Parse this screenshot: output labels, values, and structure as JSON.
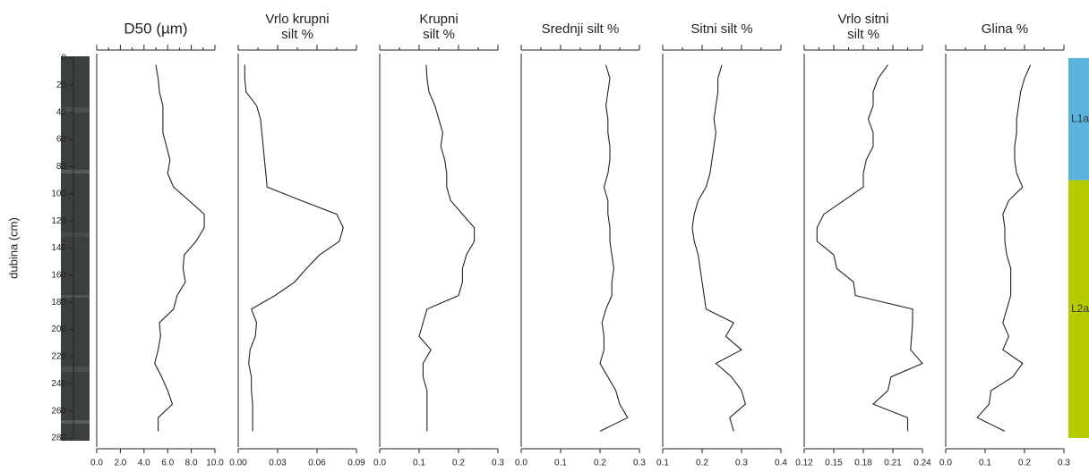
{
  "chart_data": [
    {
      "type": "line",
      "title": [
        "D50 (µm)"
      ],
      "xlim": [
        0,
        10
      ],
      "xticks": [
        {
          "value": 0,
          "label": "0.0"
        },
        {
          "value": 2,
          "label": "2.0"
        },
        {
          "value": 4,
          "label": "4.0"
        },
        {
          "value": 6,
          "label": "6.0"
        },
        {
          "value": 8,
          "label": "8.0"
        },
        {
          "value": 10,
          "label": "10.0"
        }
      ],
      "ylabel": "dubina (cm)",
      "ylim": [
        0,
        280
      ],
      "yticks": [
        0,
        20,
        40,
        60,
        80,
        100,
        120,
        140,
        160,
        180,
        200,
        220,
        240,
        260,
        280
      ],
      "y_inverted": true,
      "color": "#222222",
      "y": [
        5,
        15,
        25,
        35,
        45,
        55,
        65,
        75,
        85,
        95,
        105,
        115,
        125,
        135,
        145,
        155,
        165,
        175,
        185,
        195,
        205,
        215,
        225,
        235,
        245,
        255,
        265,
        275
      ],
      "values": [
        5.0,
        5.2,
        5.3,
        5.6,
        5.6,
        5.6,
        5.9,
        6.2,
        6.0,
        6.5,
        7.8,
        9.1,
        9.1,
        8.4,
        7.4,
        7.3,
        7.5,
        6.8,
        6.5,
        5.3,
        5.4,
        5.2,
        4.9,
        5.5,
        6.0,
        6.4,
        5.2,
        5.2
      ]
    },
    {
      "type": "line",
      "title": [
        "Vrlo krupni",
        "silt %"
      ],
      "xlim": [
        0,
        0.09
      ],
      "xticks": [
        {
          "value": 0,
          "label": "0.00"
        },
        0.03,
        0.06,
        0.09
      ],
      "color": "#222222",
      "y": [
        5,
        15,
        25,
        35,
        45,
        55,
        65,
        75,
        85,
        95,
        105,
        115,
        125,
        135,
        145,
        155,
        165,
        175,
        185,
        195,
        205,
        215,
        225,
        235,
        245,
        255,
        265,
        275
      ],
      "values": [
        0.005,
        0.005,
        0.006,
        0.014,
        0.017,
        0.018,
        0.019,
        0.02,
        0.021,
        0.022,
        0.048,
        0.075,
        0.08,
        0.077,
        0.062,
        0.052,
        0.043,
        0.028,
        0.01,
        0.014,
        0.013,
        0.009,
        0.008,
        0.01,
        0.01,
        0.011,
        0.011,
        0.011
      ]
    },
    {
      "type": "line",
      "title": [
        "Krupni",
        "silt %"
      ],
      "xlim": [
        0,
        0.3
      ],
      "xticks": [
        {
          "value": 0,
          "label": "0.0"
        },
        0.1,
        0.2,
        0.3
      ],
      "color": "#222222",
      "y": [
        5,
        15,
        25,
        35,
        45,
        55,
        65,
        75,
        85,
        95,
        105,
        115,
        125,
        135,
        145,
        155,
        165,
        175,
        185,
        195,
        205,
        215,
        225,
        235,
        245,
        255,
        265,
        275
      ],
      "values": [
        0.118,
        0.12,
        0.125,
        0.14,
        0.15,
        0.16,
        0.155,
        0.165,
        0.17,
        0.17,
        0.18,
        0.21,
        0.24,
        0.24,
        0.22,
        0.21,
        0.21,
        0.2,
        0.12,
        0.11,
        0.1,
        0.13,
        0.11,
        0.11,
        0.12,
        0.12,
        0.12,
        0.12
      ]
    },
    {
      "type": "line",
      "title": [
        "Srednji silt %"
      ],
      "xlim": [
        0,
        0.3
      ],
      "xticks": [
        {
          "value": 0,
          "label": "0.0"
        },
        0.1,
        0.2,
        0.3
      ],
      "color": "#222222",
      "y": [
        5,
        15,
        25,
        35,
        45,
        55,
        65,
        75,
        85,
        95,
        105,
        115,
        125,
        135,
        145,
        155,
        165,
        175,
        185,
        195,
        205,
        215,
        225,
        235,
        245,
        255,
        265,
        275
      ],
      "values": [
        0.215,
        0.225,
        0.22,
        0.215,
        0.22,
        0.22,
        0.225,
        0.225,
        0.22,
        0.21,
        0.22,
        0.22,
        0.225,
        0.225,
        0.23,
        0.235,
        0.23,
        0.23,
        0.215,
        0.205,
        0.21,
        0.21,
        0.2,
        0.22,
        0.24,
        0.25,
        0.27,
        0.2
      ]
    },
    {
      "type": "line",
      "title": [
        "Sitni silt %"
      ],
      "xlim": [
        0.1,
        0.4
      ],
      "xticks": [
        0.1,
        0.2,
        0.3,
        0.4
      ],
      "color": "#222222",
      "y": [
        5,
        15,
        25,
        35,
        45,
        55,
        65,
        75,
        85,
        95,
        105,
        115,
        125,
        135,
        145,
        155,
        165,
        175,
        185,
        195,
        205,
        215,
        225,
        235,
        245,
        255,
        265,
        275
      ],
      "values": [
        0.25,
        0.24,
        0.24,
        0.235,
        0.23,
        0.235,
        0.23,
        0.225,
        0.22,
        0.21,
        0.19,
        0.18,
        0.175,
        0.18,
        0.19,
        0.195,
        0.2,
        0.205,
        0.21,
        0.28,
        0.26,
        0.3,
        0.235,
        0.275,
        0.3,
        0.31,
        0.27,
        0.28
      ]
    },
    {
      "type": "line",
      "title": [
        "Vrlo sitni",
        "silt %"
      ],
      "xlim": [
        0.12,
        0.24
      ],
      "xticks": [
        0.12,
        0.15,
        0.18,
        0.21,
        0.24
      ],
      "color": "#222222",
      "y": [
        5,
        15,
        25,
        35,
        45,
        55,
        65,
        75,
        85,
        95,
        105,
        115,
        125,
        135,
        145,
        155,
        165,
        175,
        185,
        195,
        205,
        215,
        225,
        235,
        245,
        255,
        265,
        275
      ],
      "values": [
        0.205,
        0.195,
        0.19,
        0.19,
        0.185,
        0.19,
        0.19,
        0.183,
        0.18,
        0.18,
        0.16,
        0.14,
        0.133,
        0.133,
        0.15,
        0.153,
        0.17,
        0.172,
        0.23,
        0.23,
        0.229,
        0.228,
        0.24,
        0.208,
        0.205,
        0.19,
        0.225,
        0.225
      ]
    },
    {
      "type": "line",
      "title": [
        "Glina %"
      ],
      "xlim": [
        0,
        0.3
      ],
      "xticks": [
        {
          "value": 0,
          "label": "0.0"
        },
        0.1,
        0.2,
        0.3
      ],
      "color": "#222222",
      "y": [
        5,
        15,
        25,
        35,
        45,
        55,
        65,
        75,
        85,
        95,
        105,
        115,
        125,
        135,
        145,
        155,
        165,
        175,
        185,
        195,
        205,
        215,
        225,
        235,
        245,
        255,
        265,
        275
      ],
      "values": [
        0.215,
        0.2,
        0.19,
        0.185,
        0.18,
        0.18,
        0.175,
        0.175,
        0.18,
        0.195,
        0.16,
        0.145,
        0.15,
        0.15,
        0.155,
        0.165,
        0.165,
        0.165,
        0.155,
        0.145,
        0.16,
        0.145,
        0.195,
        0.17,
        0.115,
        0.11,
        0.08,
        0.15
      ]
    }
  ],
  "units": [
    {
      "label": "L1a",
      "from": 0,
      "to": 90,
      "color": "#5ab4dc"
    },
    {
      "label": "L2a",
      "from": 90,
      "to": 280,
      "color": "#b6cc00"
    }
  ]
}
